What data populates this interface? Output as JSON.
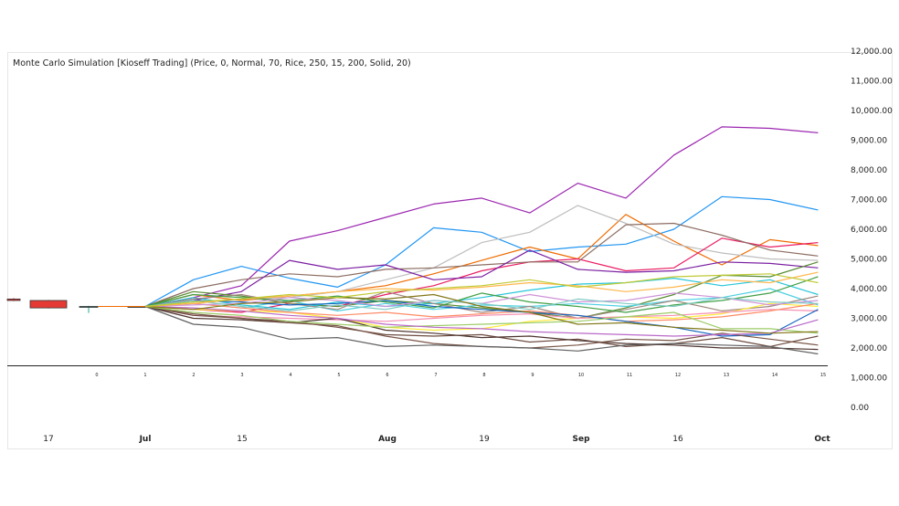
{
  "chart_data": {
    "type": "line",
    "title": "Monte Carlo Simulation [Kioseff Trading] (Price, 0, Normal, 70, Rice, 250, 15, 200, Solid, 20)",
    "y_ticks": [
      "12,000.00",
      "11,000.00",
      "10,000.00",
      "9,000.00",
      "8,000.00",
      "7,000.00",
      "6,000.00",
      "5,000.00",
      "4,000.00",
      "3,000.00",
      "2,000.00",
      "1,000.00",
      "0.00"
    ],
    "y_tick_values": [
      12000,
      11000,
      10000,
      9000,
      8000,
      7000,
      6000,
      5000,
      4000,
      3000,
      2000,
      1000,
      0
    ],
    "ylim": [
      0,
      12000
    ],
    "step_labels": [
      "0",
      "1",
      "2",
      "3",
      "4",
      "5",
      "6",
      "7",
      "8",
      "9",
      "10",
      "11",
      "12",
      "13",
      "14",
      "15"
    ],
    "date_labels": [
      {
        "text": "17",
        "bold": false
      },
      {
        "text": "Jul",
        "bold": true
      },
      {
        "text": "15",
        "bold": false
      },
      {
        "text": "Aug",
        "bold": true
      },
      {
        "text": "19",
        "bold": false
      },
      {
        "text": "Sep",
        "bold": true
      },
      {
        "text": "16",
        "bold": false
      },
      {
        "text": "Oct",
        "bold": true
      }
    ],
    "start_value": 3400,
    "candles": [
      {
        "open": 3650,
        "close": 3600,
        "high": 3680,
        "low": 3580,
        "color": "#e53935"
      },
      {
        "open": 3600,
        "close": 3350,
        "high": 3620,
        "low": 3330,
        "color": "#e53935"
      },
      {
        "open": 3380,
        "close": 3400,
        "high": 3420,
        "low": 3180,
        "color": "#26a69a"
      },
      {
        "open": 3400,
        "close": 3400,
        "high": 3410,
        "low": 3390,
        "color": "#222222"
      }
    ],
    "series": [
      {
        "color": "#9c27b0",
        "values": [
          3400,
          3700,
          4100,
          5600,
          5950,
          6400,
          6850,
          7050,
          6550,
          7550,
          7050,
          8500,
          9450,
          9400,
          9250
        ]
      },
      {
        "color": "#2196f3",
        "values": [
          3400,
          4300,
          4750,
          4350,
          4050,
          4800,
          6050,
          5900,
          5250,
          5400,
          5500,
          6000,
          7100,
          7000,
          6650
        ]
      },
      {
        "color": "#ef6c00",
        "values": [
          3400,
          3800,
          3600,
          3750,
          3900,
          4100,
          4500,
          4950,
          5400,
          5000,
          6500,
          5600,
          4800,
          5650,
          5450
        ]
      },
      {
        "color": "#bdbdbd",
        "values": [
          3400,
          3500,
          3650,
          3700,
          3900,
          4300,
          4700,
          5550,
          5900,
          6800,
          6200,
          5500,
          5200,
          5000,
          4950
        ]
      },
      {
        "color": "#e91e63",
        "values": [
          3400,
          3300,
          3200,
          3500,
          3400,
          3800,
          4100,
          4600,
          4900,
          5000,
          4600,
          4700,
          5700,
          5400,
          5550
        ]
      },
      {
        "color": "#8d6e63",
        "values": [
          3400,
          4000,
          4300,
          4500,
          4400,
          4650,
          4700,
          4800,
          4900,
          4900,
          6150,
          6200,
          5800,
          5300,
          5100
        ]
      },
      {
        "color": "#7b1fa2",
        "values": [
          3400,
          3600,
          3900,
          4950,
          4650,
          4800,
          4300,
          4400,
          5300,
          4650,
          4550,
          4600,
          4900,
          4850,
          4700
        ]
      },
      {
        "color": "#558b2f",
        "values": [
          3400,
          3900,
          3750,
          3500,
          3400,
          3600,
          3500,
          3350,
          3200,
          3000,
          3350,
          3800,
          4450,
          4400,
          4900
        ]
      },
      {
        "color": "#4dd0e1",
        "values": [
          3400,
          3500,
          3350,
          3600,
          3250,
          3500,
          3300,
          3450,
          3400,
          3500,
          3400,
          3600,
          3700,
          4000,
          3450
        ]
      },
      {
        "color": "#26c6da",
        "values": [
          3400,
          3700,
          3450,
          3300,
          3550,
          3400,
          3500,
          3700,
          3950,
          4150,
          4200,
          4350,
          4100,
          4300,
          3800
        ]
      },
      {
        "color": "#a1887f",
        "values": [
          3400,
          3650,
          3800,
          3500,
          3300,
          3900,
          3500,
          3200,
          3400,
          3000,
          3300,
          3600,
          3250,
          3400,
          3750
        ]
      },
      {
        "color": "#ffeb3b",
        "values": [
          3400,
          3300,
          3250,
          3200,
          3000,
          2700,
          2600,
          2650,
          2900,
          3000,
          3050,
          3000,
          3150,
          3500,
          3400
        ]
      },
      {
        "color": "#f48fb1",
        "values": [
          3400,
          3100,
          3050,
          3000,
          2950,
          2900,
          3000,
          3100,
          3150,
          3000,
          3050,
          3100,
          3200,
          3300,
          3250
        ]
      },
      {
        "color": "#ff8a65",
        "values": [
          3400,
          3500,
          3350,
          3200,
          3100,
          3200,
          3050,
          3150,
          3250,
          3100,
          2900,
          2950,
          3050,
          3250,
          3500
        ]
      },
      {
        "color": "#1565c0",
        "values": [
          3400,
          3600,
          3550,
          3450,
          3500,
          3600,
          3400,
          3300,
          3200,
          3100,
          2900,
          2700,
          2400,
          2450,
          3300
        ]
      },
      {
        "color": "#6d4c41",
        "values": [
          3400,
          3100,
          3000,
          2900,
          2700,
          2450,
          2400,
          2450,
          2200,
          2300,
          2050,
          2150,
          2350,
          2050,
          2400
        ]
      },
      {
        "color": "#4e342e",
        "values": [
          3400,
          3000,
          2950,
          2850,
          3000,
          2600,
          2500,
          2350,
          2400,
          2250,
          2150,
          2100,
          2000,
          2000,
          1950
        ]
      },
      {
        "color": "#795548",
        "values": [
          3400,
          3150,
          3000,
          2850,
          2750,
          2400,
          2150,
          2050,
          2000,
          2100,
          2300,
          2250,
          2500,
          2300,
          2100
        ]
      },
      {
        "color": "#616161",
        "values": [
          3400,
          2800,
          2700,
          2300,
          2350,
          2050,
          2100,
          2050,
          2000,
          1900,
          2100,
          2150,
          2100,
          2050,
          1800
        ]
      },
      {
        "color": "#9ccc65",
        "values": [
          3400,
          3200,
          3100,
          2900,
          2800,
          2700,
          2750,
          2800,
          2850,
          2900,
          3050,
          3200,
          2650,
          2650,
          2500
        ]
      },
      {
        "color": "#ba68c8",
        "values": [
          3400,
          3350,
          3250,
          3100,
          3000,
          2800,
          2700,
          2650,
          2550,
          2500,
          2450,
          2400,
          2450,
          2500,
          2950
        ]
      },
      {
        "color": "#43a047",
        "values": [
          3400,
          3800,
          3700,
          3600,
          3750,
          3550,
          3350,
          3850,
          3550,
          3400,
          3200,
          3450,
          3600,
          3850,
          4400
        ]
      },
      {
        "color": "#ce93d8",
        "values": [
          3400,
          3450,
          3500,
          3700,
          3600,
          3400,
          3600,
          3500,
          3800,
          3550,
          3600,
          3850,
          3700,
          3450,
          3600
        ]
      },
      {
        "color": "#80cbc4",
        "values": [
          3400,
          3600,
          3400,
          3250,
          3450,
          3300,
          3600,
          3500,
          3300,
          3650,
          3500,
          3400,
          3700,
          3550,
          3500
        ]
      },
      {
        "color": "#827717",
        "values": [
          3400,
          3300,
          3500,
          3550,
          3700,
          3650,
          3800,
          3400,
          3200,
          2800,
          2850,
          2700,
          2600,
          2500,
          2550
        ]
      },
      {
        "color": "#ffb74d",
        "values": [
          3400,
          3500,
          3650,
          3750,
          3900,
          4000,
          3950,
          4050,
          4200,
          4100,
          3900,
          4050,
          4300,
          4200,
          4550
        ]
      },
      {
        "color": "#c0ca33",
        "values": [
          3400,
          3550,
          3650,
          3800,
          3700,
          3900,
          4000,
          4100,
          4300,
          4050,
          4200,
          4400,
          4450,
          4500,
          4200
        ]
      }
    ]
  }
}
